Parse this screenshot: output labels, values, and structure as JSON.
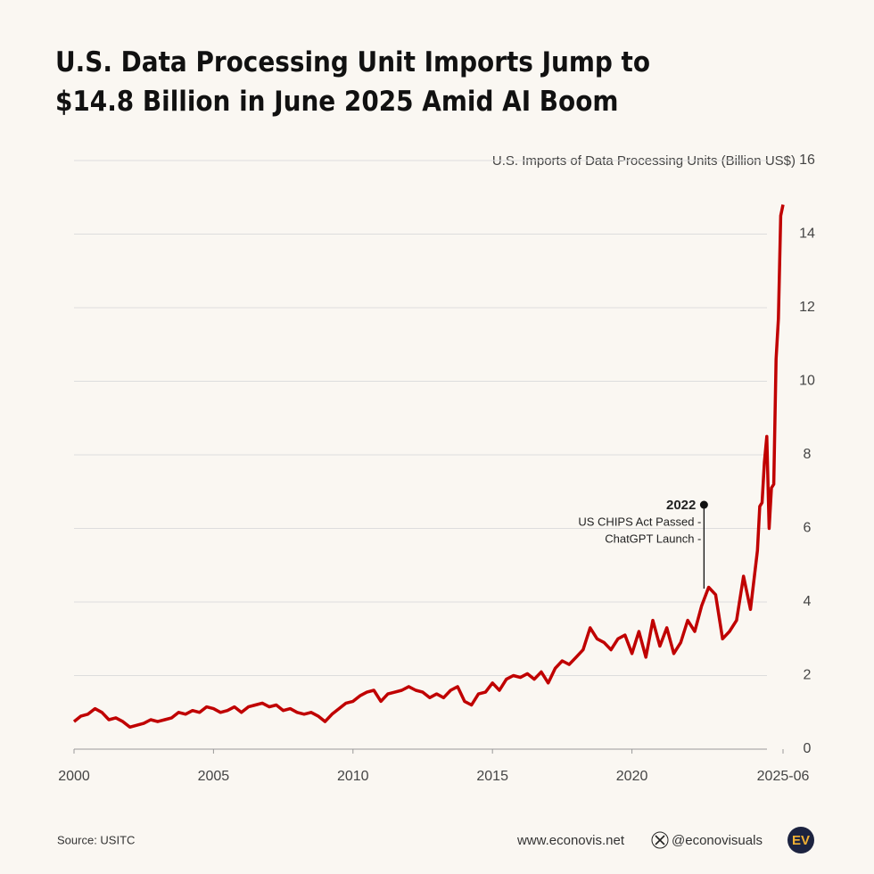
{
  "chart_data": {
    "type": "line",
    "title": [
      "U.S. Data Processing Unit Imports Jump to",
      "$14.8 Billion in June 2025 Amid AI Boom"
    ],
    "y_axis_label": "U.S. Imports of Data Processing Units (Billion US$)",
    "x": [
      "2000-01",
      "2000-04",
      "2000-07",
      "2000-10",
      "2001-01",
      "2001-04",
      "2001-07",
      "2001-10",
      "2002-01",
      "2002-04",
      "2002-07",
      "2002-10",
      "2003-01",
      "2003-04",
      "2003-07",
      "2003-10",
      "2004-01",
      "2004-04",
      "2004-07",
      "2004-10",
      "2005-01",
      "2005-04",
      "2005-07",
      "2005-10",
      "2006-01",
      "2006-04",
      "2006-07",
      "2006-10",
      "2007-01",
      "2007-04",
      "2007-07",
      "2007-10",
      "2008-01",
      "2008-04",
      "2008-07",
      "2008-10",
      "2009-01",
      "2009-04",
      "2009-07",
      "2009-10",
      "2010-01",
      "2010-04",
      "2010-07",
      "2010-10",
      "2011-01",
      "2011-04",
      "2011-07",
      "2011-10",
      "2012-01",
      "2012-04",
      "2012-07",
      "2012-10",
      "2013-01",
      "2013-04",
      "2013-07",
      "2013-10",
      "2014-01",
      "2014-04",
      "2014-07",
      "2014-10",
      "2015-01",
      "2015-04",
      "2015-07",
      "2015-10",
      "2016-01",
      "2016-04",
      "2016-07",
      "2016-10",
      "2017-01",
      "2017-04",
      "2017-07",
      "2017-10",
      "2018-01",
      "2018-04",
      "2018-07",
      "2018-10",
      "2019-01",
      "2019-04",
      "2019-07",
      "2019-10",
      "2020-01",
      "2020-04",
      "2020-07",
      "2020-10",
      "2021-01",
      "2021-04",
      "2021-07",
      "2021-10",
      "2022-01",
      "2022-04",
      "2022-07",
      "2022-10",
      "2023-01",
      "2023-04",
      "2023-07",
      "2023-10",
      "2024-01",
      "2024-04",
      "2024-07",
      "2024-08",
      "2024-09",
      "2024-10",
      "2024-11",
      "2024-12",
      "2025-01",
      "2025-02",
      "2025-03",
      "2025-04",
      "2025-05",
      "2025-06"
    ],
    "series": [
      {
        "name": "U.S. Imports of Data Processing Units",
        "color": "#c00000",
        "values": [
          0.75,
          0.9,
          0.95,
          1.1,
          1.0,
          0.8,
          0.85,
          0.75,
          0.6,
          0.65,
          0.7,
          0.8,
          0.75,
          0.8,
          0.85,
          1.0,
          0.95,
          1.05,
          1.0,
          1.15,
          1.1,
          1.0,
          1.05,
          1.15,
          1.0,
          1.15,
          1.2,
          1.25,
          1.15,
          1.2,
          1.05,
          1.1,
          1.0,
          0.95,
          1.0,
          0.9,
          0.75,
          0.95,
          1.1,
          1.25,
          1.3,
          1.45,
          1.55,
          1.6,
          1.3,
          1.5,
          1.55,
          1.6,
          1.7,
          1.6,
          1.55,
          1.4,
          1.5,
          1.4,
          1.6,
          1.7,
          1.3,
          1.2,
          1.5,
          1.55,
          1.8,
          1.6,
          1.9,
          2.0,
          1.95,
          2.05,
          1.9,
          2.1,
          1.8,
          2.2,
          2.4,
          2.3,
          2.5,
          2.7,
          3.3,
          3.0,
          2.9,
          2.7,
          3.0,
          3.1,
          2.6,
          3.2,
          2.5,
          3.5,
          2.8,
          3.3,
          2.6,
          2.9,
          3.5,
          3.2,
          3.9,
          4.4,
          4.2,
          3.0,
          3.2,
          3.5,
          4.7,
          3.8,
          5.4,
          6.6,
          6.7,
          7.8,
          8.5,
          6.0,
          7.1,
          7.2,
          10.6,
          11.7,
          14.5,
          14.8
        ]
      }
    ],
    "xlim": [
      "2000-01",
      "2025-06"
    ],
    "xticks": [
      {
        "value": "2000-01",
        "label": "2000"
      },
      {
        "value": "2005-01",
        "label": "2005"
      },
      {
        "value": "2010-01",
        "label": "2010"
      },
      {
        "value": "2015-01",
        "label": "2015"
      },
      {
        "value": "2020-01",
        "label": "2020"
      },
      "2025-06"
    ],
    "ylim": [
      0,
      16
    ],
    "yticks": [
      0,
      2,
      4,
      6,
      8,
      10,
      12,
      14,
      16
    ],
    "grid": true,
    "annotations": [
      {
        "x": "2022-08",
        "label": "2022",
        "lines": [
          "US CHIPS Act Passed -",
          "ChatGPT Launch -"
        ]
      }
    ]
  },
  "footer": {
    "source": "Source: USITC",
    "website": "www.econovis.net",
    "handle": "@econovisuals",
    "logo": "EV"
  }
}
